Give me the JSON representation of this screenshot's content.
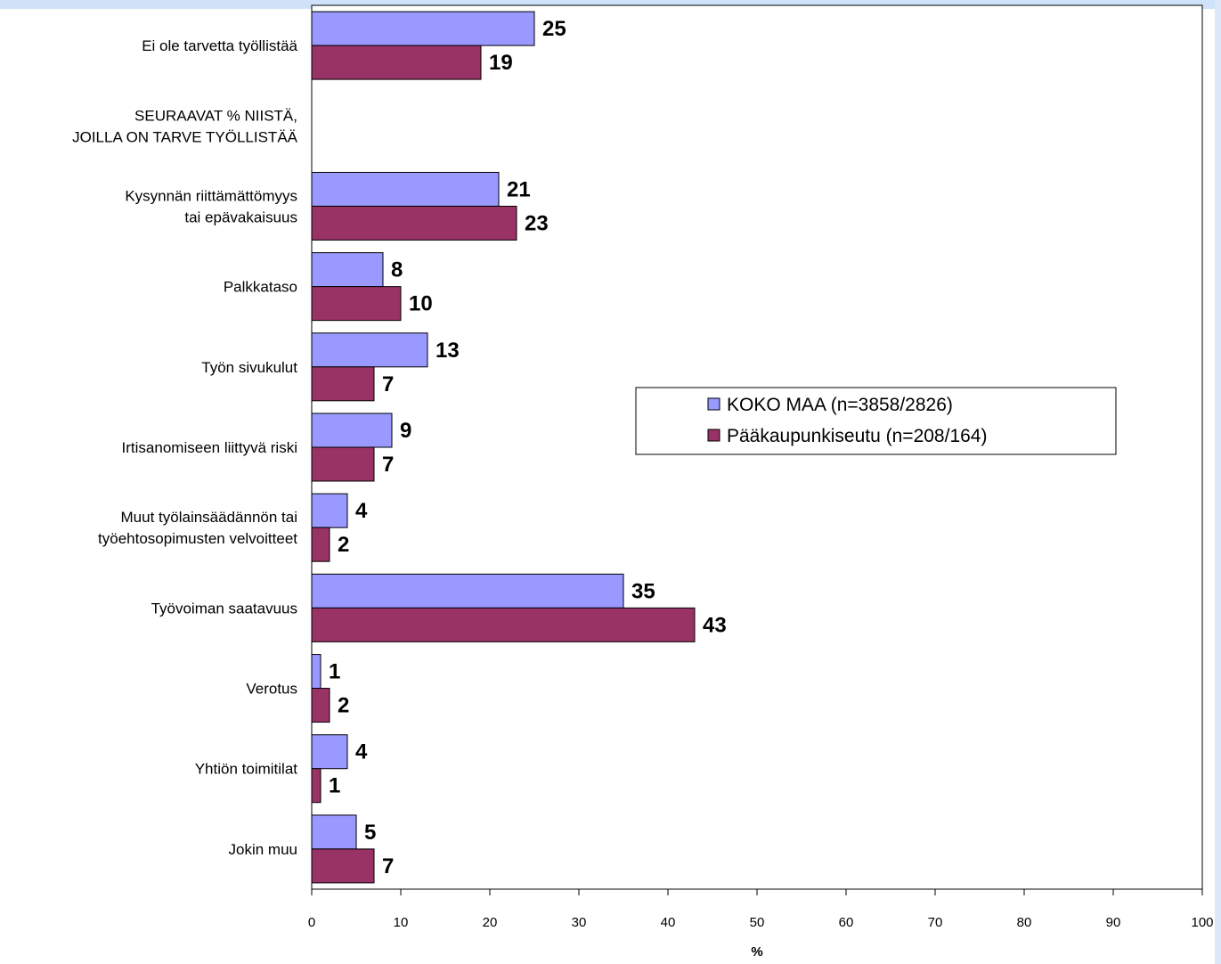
{
  "chart_data": {
    "type": "bar",
    "orientation": "horizontal",
    "categories": [
      [
        "Ei ole tarvetta työllistää"
      ],
      [
        "SEURAAVAT % NIISTÄ,",
        "JOILLA ON TARVE TYÖLLISTÄÄ"
      ],
      [
        "Kysynnän riittämättömyys",
        "tai epävakaisuus"
      ],
      [
        "Palkkataso"
      ],
      [
        "Työn sivukulut"
      ],
      [
        "Irtisanomiseen liittyvä riski"
      ],
      [
        "Muut työlainsäädännön tai",
        "työehtosopimusten velvoitteet"
      ],
      [
        "Työvoiman saatavuus"
      ],
      [
        "Verotus"
      ],
      [
        "Yhtiön toimitilat"
      ],
      [
        "Jokin muu"
      ]
    ],
    "series": [
      {
        "name": "KOKO MAA (n=3858/2826)",
        "color": "#9999ff",
        "values": [
          25,
          null,
          21,
          8,
          13,
          9,
          4,
          35,
          1,
          4,
          5
        ]
      },
      {
        "name": "Pääkaupunkiseutu (n=208/164)",
        "color": "#993366",
        "values": [
          19,
          null,
          23,
          10,
          7,
          7,
          2,
          43,
          2,
          1,
          7
        ]
      }
    ],
    "xlabel": "%",
    "xlim": [
      0,
      100
    ],
    "xticks": [
      0,
      10,
      20,
      30,
      40,
      50,
      60,
      70,
      80,
      90,
      100
    ],
    "grid": false,
    "legend_position": "right-middle"
  }
}
